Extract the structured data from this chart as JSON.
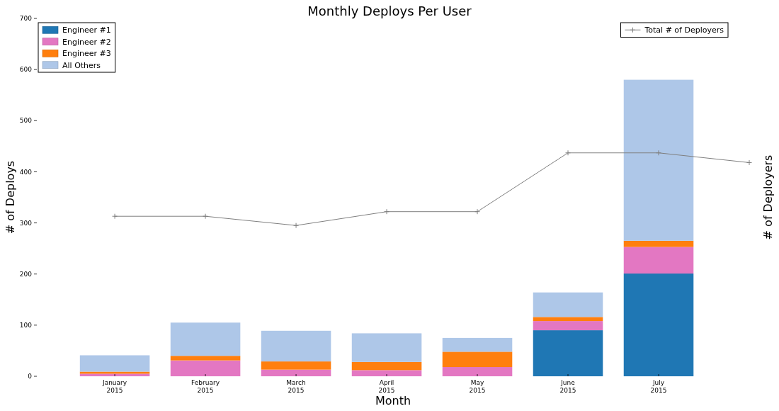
{
  "chart_data": {
    "type": "bar",
    "title": "Monthly Deploys Per User",
    "xlabel": "Month",
    "ylabel": "# of Deploys",
    "y2label": "# of Deployers",
    "categories": [
      "January\n2015",
      "February\n2015",
      "March\n2015",
      "April\n2015",
      "May\n2015",
      "June\n2015",
      "July\n2015",
      null
    ],
    "stacked": true,
    "series": [
      {
        "name": "Engineer #1",
        "color": "#1f77b4",
        "values": [
          0,
          0,
          0,
          0,
          0,
          90,
          201,
          null
        ]
      },
      {
        "name": "Engineer #2",
        "color": "#e377c2",
        "values": [
          5,
          31,
          13,
          12,
          18,
          18,
          52,
          null
        ]
      },
      {
        "name": "Engineer #3",
        "color": "#ff7f0e",
        "values": [
          4,
          9,
          16,
          16,
          30,
          8,
          12,
          null
        ]
      },
      {
        "name": "All Others",
        "color": "#aec7e8",
        "values": [
          32,
          65,
          60,
          56,
          27,
          48,
          315,
          null
        ]
      },
      {
        "name": "Total # of Deployers",
        "type": "line",
        "color": "#7f7f7f",
        "values": [
          313,
          313,
          295,
          322,
          322,
          437,
          437,
          418
        ]
      }
    ],
    "ylim": [
      0,
      700
    ],
    "yticks": [
      0,
      100,
      200,
      300,
      400,
      500,
      600,
      700
    ],
    "legend": "top left",
    "marker": "cross"
  }
}
